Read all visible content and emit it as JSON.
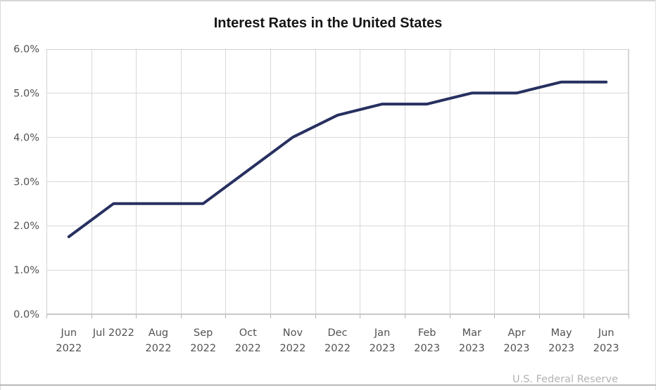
{
  "title": "Interest Rates in the United States",
  "source": "U.S. Federal Reserve",
  "colors": {
    "line": "#273060",
    "grid": "#d9d9d9",
    "plot_border": "#d2d2d2",
    "bottom_axis": "#bdbdbd",
    "tick": "#b5b5b5",
    "axis_text": "#515151",
    "title_text": "#151515",
    "source_text": "#b3b3b6"
  },
  "chart_data": {
    "type": "line",
    "title": "Interest Rates in the United States",
    "source": "U.S. Federal Reserve",
    "categories": [
      "Jun 2022",
      "Jul 2022",
      "Aug 2022",
      "Sep 2022",
      "Oct 2022",
      "Nov 2022",
      "Dec 2022",
      "Jan 2023",
      "Feb 2023",
      "Mar 2023",
      "Apr 2023",
      "May 2023",
      "Jun 2023"
    ],
    "x_tick_lines": [
      [
        "Jun",
        "2022"
      ],
      [
        "Jul 2022"
      ],
      [
        "Aug",
        "2022"
      ],
      [
        "Sep",
        "2022"
      ],
      [
        "Oct",
        "2022"
      ],
      [
        "Nov",
        "2022"
      ],
      [
        "Dec",
        "2022"
      ],
      [
        "Jan",
        "2023"
      ],
      [
        "Feb",
        "2023"
      ],
      [
        "Mar",
        "2023"
      ],
      [
        "Apr",
        "2023"
      ],
      [
        "May",
        "2023"
      ],
      [
        "Jun",
        "2023"
      ]
    ],
    "series": [
      {
        "name": "Interest rate",
        "values": [
          1.75,
          2.5,
          2.5,
          2.5,
          3.25,
          4.0,
          4.5,
          4.75,
          4.75,
          5.0,
          5.0,
          5.25,
          5.25
        ]
      }
    ],
    "unit": "%",
    "ylim": [
      0,
      6
    ],
    "y_tick_step": 1,
    "y_ticks": [
      "6.0%",
      "5.0%",
      "4.0%",
      "3.0%",
      "2.0%",
      "1.0%",
      "0.0%"
    ],
    "grid": true,
    "legend": "none",
    "xlabel": "",
    "ylabel": ""
  }
}
